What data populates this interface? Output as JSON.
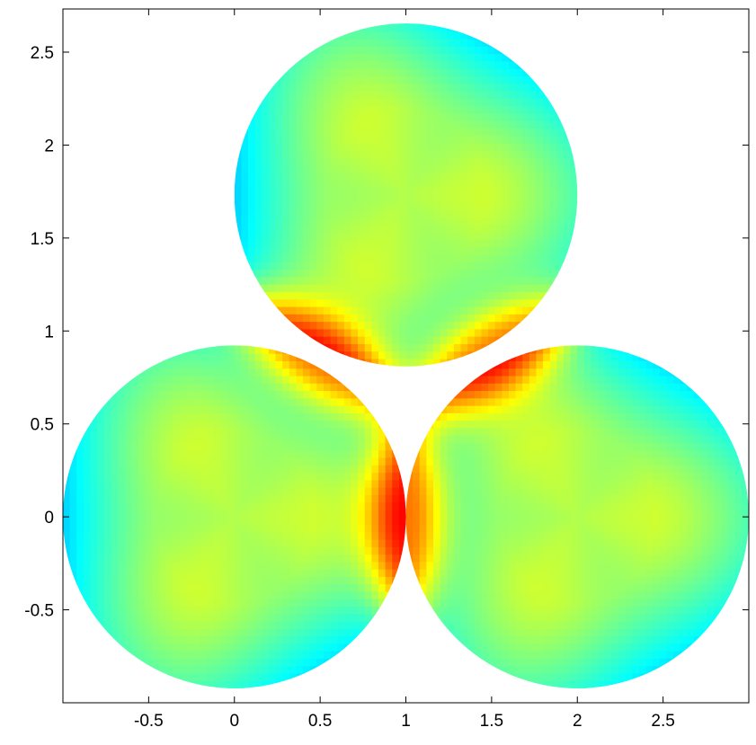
{
  "chart_data": {
    "type": "heatmap",
    "title": "",
    "xlabel": "",
    "ylabel": "",
    "xlim": [
      -1,
      3
    ],
    "ylim": [
      -1,
      2.732
    ],
    "grid": false,
    "legend": "none",
    "colormap": "jet",
    "x_ticks": [
      "-0.5",
      "0",
      "0.5",
      "1",
      "1.5",
      "2",
      "2.5"
    ],
    "y_ticks": [
      "-0.5",
      "0",
      "0.5",
      "1",
      "1.5",
      "2",
      "2.5"
    ],
    "disks": [
      {
        "name": "",
        "center": [
          0,
          0
        ],
        "radius": 1
      },
      {
        "name": "",
        "center": [
          2,
          0
        ],
        "radius": 1
      },
      {
        "name": "",
        "center": [
          1,
          1.732
        ],
        "radius": 1
      }
    ],
    "colorscale_stops": [
      "#00008f",
      "#0000ff",
      "#00ffff",
      "#7fff7f",
      "#ffff00",
      "#ff0000",
      "#800000"
    ]
  }
}
